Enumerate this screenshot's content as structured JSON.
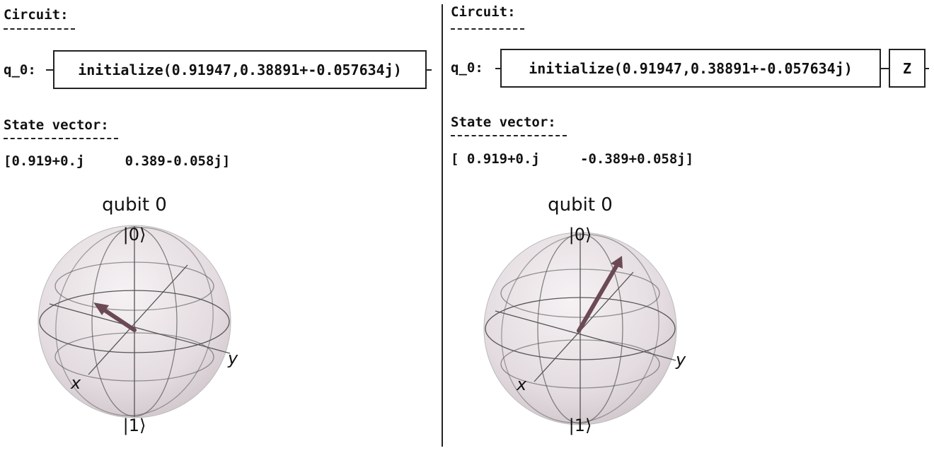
{
  "left": {
    "circuit_label": "Circuit:",
    "qubit_label": "q_0:",
    "gates": [
      "initialize(0.91947,0.38891+-0.057634j)"
    ],
    "state_label": "State vector:",
    "state_vector": "[0.919+0.j     0.389-0.058j]",
    "bloch": {
      "title": "qubit 0",
      "ket0": "|0⟩",
      "ket1": "|1⟩",
      "x_label": "x",
      "y_label": "y"
    }
  },
  "right": {
    "circuit_label": "Circuit:",
    "qubit_label": "q_0:",
    "gates": [
      "initialize(0.91947,0.38891+-0.057634j)",
      "Z"
    ],
    "state_label": "State vector:",
    "state_vector": "[ 0.919+0.j     -0.389+0.058j]",
    "bloch": {
      "title": "qubit 0",
      "ket0": "|0⟩",
      "ket1": "|1⟩",
      "x_label": "x",
      "y_label": "y"
    }
  },
  "colors": {
    "arrow": "#6b4a55",
    "sphere_fill": "#e6dfe2",
    "grid": "#555555"
  }
}
